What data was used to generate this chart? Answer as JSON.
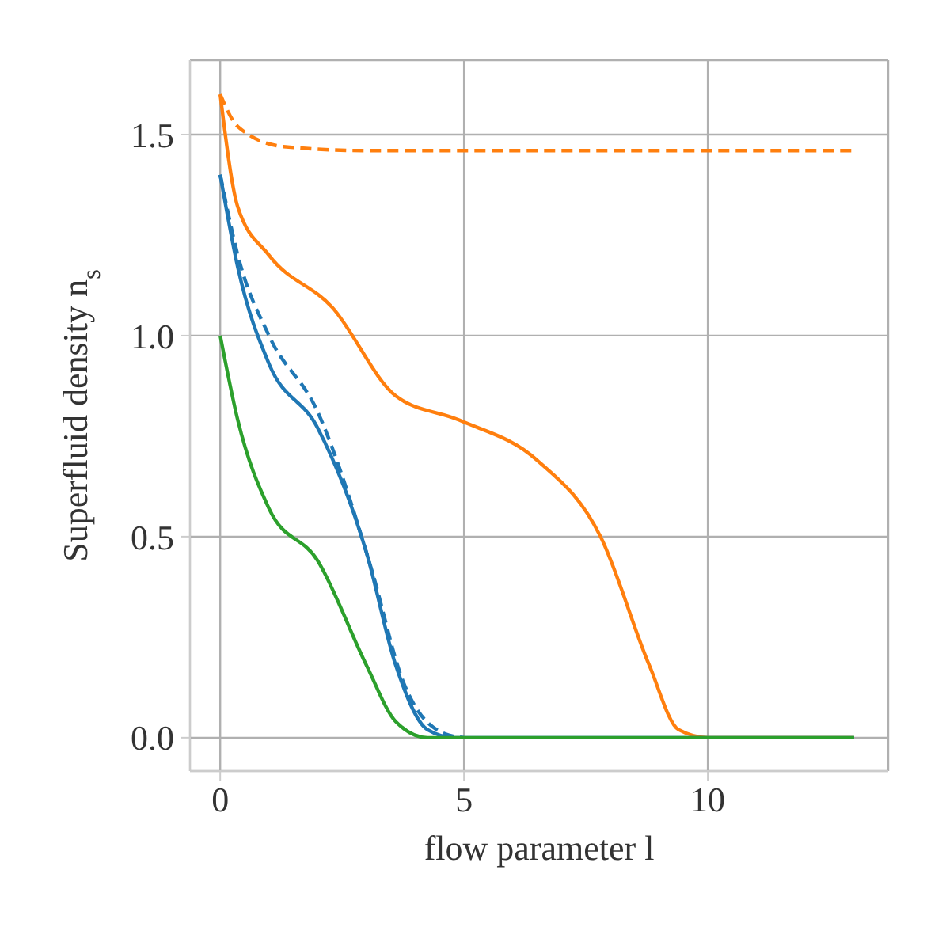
{
  "chart_data": {
    "type": "line",
    "xlabel": "flow parameter l",
    "ylabel": "Superfluid density n$_{s}$",
    "xlim": [
      -0.62,
      13.7
    ],
    "ylim": [
      -0.083,
      1.685
    ],
    "xticks": [
      0,
      5,
      10
    ],
    "yticks": [
      {
        "value": 0,
        "label": "0.0"
      },
      {
        "value": 0.5,
        "label": "0.5"
      },
      {
        "value": 1,
        "label": "1.0"
      },
      {
        "value": 1.5,
        "label": "1.5"
      }
    ],
    "grid": true,
    "marker": "none",
    "series": [
      {
        "color": "#ff7f0e",
        "line_style": "solid",
        "x": [
          0,
          0.36,
          1.0,
          2.3,
          3.6,
          4.9,
          6.5,
          7.8,
          8.8,
          9.4,
          10,
          13
        ],
        "values": [
          1.6,
          1.32,
          1.2,
          1.07,
          0.85,
          0.79,
          0.69,
          0.5,
          0.18,
          0.02,
          0,
          0
        ]
      },
      {
        "color": "#ff7f0e",
        "line_style": "dashed",
        "x": [
          0,
          0.36,
          1.3,
          3,
          13
        ],
        "values": [
          1.6,
          1.52,
          1.47,
          1.46,
          1.46
        ]
      },
      {
        "color": "#1f77b4",
        "line_style": "solid",
        "x": [
          0,
          0.36,
          1.0,
          2.0,
          3.0,
          3.6,
          4.25,
          4.8,
          13
        ],
        "values": [
          1.4,
          1.17,
          0.93,
          0.77,
          0.46,
          0.18,
          0.02,
          0,
          0
        ]
      },
      {
        "color": "#1f77b4",
        "line_style": "dashed",
        "x": [
          0,
          0.36,
          1.0,
          2.0,
          3.1,
          3.75,
          4.6,
          5
        ],
        "values": [
          1.4,
          1.2,
          1.0,
          0.81,
          0.42,
          0.14,
          0.01,
          0
        ]
      },
      {
        "color": "#2ca02c",
        "line_style": "solid",
        "x": [
          0,
          0.36,
          1.0,
          2.0,
          3.0,
          3.6,
          4.25,
          13
        ],
        "values": [
          1.0,
          0.79,
          0.57,
          0.44,
          0.18,
          0.04,
          0,
          0
        ]
      }
    ]
  }
}
